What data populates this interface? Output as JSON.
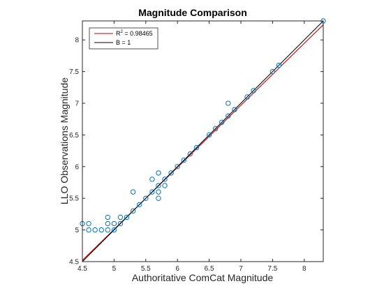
{
  "chart_data": {
    "type": "scatter",
    "title": "Magnitude Comparison",
    "xlabel": "Authoritative ComCat Magnitude",
    "ylabel": "LLO Observations Magnitude",
    "xlim": [
      4.5,
      8.3
    ],
    "ylim": [
      4.5,
      8.3
    ],
    "xticks": [
      "4.5",
      "5",
      "5.5",
      "6",
      "6.5",
      "7",
      "7.5",
      "8"
    ],
    "yticks": [
      "4.5",
      "5",
      "5.5",
      "6",
      "6.5",
      "7",
      "7.5",
      "8"
    ],
    "grid": false,
    "legend_position": "top-left",
    "points": {
      "color": "#0072BD",
      "x": [
        4.5,
        4.6,
        4.6,
        4.7,
        4.8,
        4.9,
        4.9,
        4.9,
        5.0,
        5.0,
        5.1,
        5.1,
        5.2,
        5.3,
        5.3,
        5.4,
        5.5,
        5.6,
        5.6,
        5.7,
        5.7,
        5.7,
        5.7,
        5.8,
        5.8,
        5.9,
        6.0,
        6.1,
        6.2,
        6.3,
        6.5,
        6.6,
        6.7,
        6.8,
        6.8,
        6.9,
        7.1,
        7.2,
        7.5,
        7.6,
        8.3
      ],
      "y": [
        5.1,
        5.1,
        5.0,
        5.0,
        5.0,
        5.2,
        5.1,
        5.0,
        5.1,
        5.0,
        5.2,
        5.1,
        5.2,
        5.6,
        5.3,
        5.4,
        5.5,
        5.8,
        5.6,
        5.9,
        5.7,
        5.6,
        5.5,
        5.8,
        5.7,
        5.9,
        6.0,
        6.1,
        6.2,
        6.3,
        6.5,
        6.6,
        6.7,
        7.0,
        6.8,
        6.9,
        7.1,
        7.2,
        7.5,
        7.6,
        8.3
      ]
    },
    "series": [
      {
        "label_main": "R",
        "label_sup": "2",
        "label_rest": " = 0.98465",
        "color": "#d00000",
        "x": [
          4.5,
          8.3
        ],
        "y": [
          4.52,
          8.24
        ]
      },
      {
        "label_main": "B = 1",
        "color": "#000000",
        "x": [
          4.5,
          8.3
        ],
        "y": [
          4.5,
          8.3
        ]
      }
    ]
  }
}
